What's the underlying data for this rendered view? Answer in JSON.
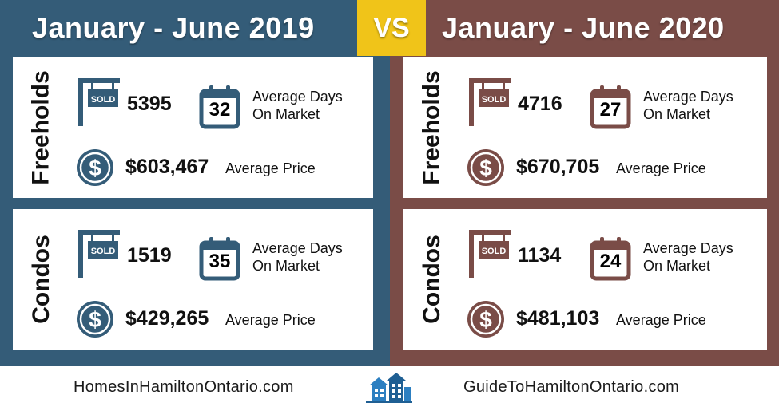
{
  "colors": {
    "left_panel": "#345c78",
    "right_panel": "#7a4c47",
    "vs_badge": "#f0c419"
  },
  "vs": "VS",
  "left": {
    "title": "January - June 2019",
    "freeholds": {
      "label": "Freeholds",
      "sold": "5395",
      "days": "32",
      "days_label_1": "Average Days",
      "days_label_2": "On Market",
      "price": "$603,467",
      "price_label": "Average Price"
    },
    "condos": {
      "label": "Condos",
      "sold": "1519",
      "days": "35",
      "days_label_1": "Average Days",
      "days_label_2": "On Market",
      "price": "$429,265",
      "price_label": "Average Price"
    }
  },
  "right": {
    "title": "January - June 2020",
    "freeholds": {
      "label": "Freeholds",
      "sold": "4716",
      "days": "27",
      "days_label_1": "Average Days",
      "days_label_2": "On Market",
      "price": "$670,705",
      "price_label": "Average Price"
    },
    "condos": {
      "label": "Condos",
      "sold": "1134",
      "days": "24",
      "days_label_1": "Average Days",
      "days_label_2": "On Market",
      "price": "$481,103",
      "price_label": "Average Price"
    }
  },
  "sold_sign_text": "SOLD",
  "icons": {
    "sold": "sold-sign-icon",
    "calendar": "calendar-icon",
    "dollar": "dollar-icon",
    "logo": "buildings-logo-icon"
  },
  "footer": {
    "left_site": "HomesInHamiltonOntario.com",
    "right_site": "GuideToHamiltonOntario.com"
  }
}
